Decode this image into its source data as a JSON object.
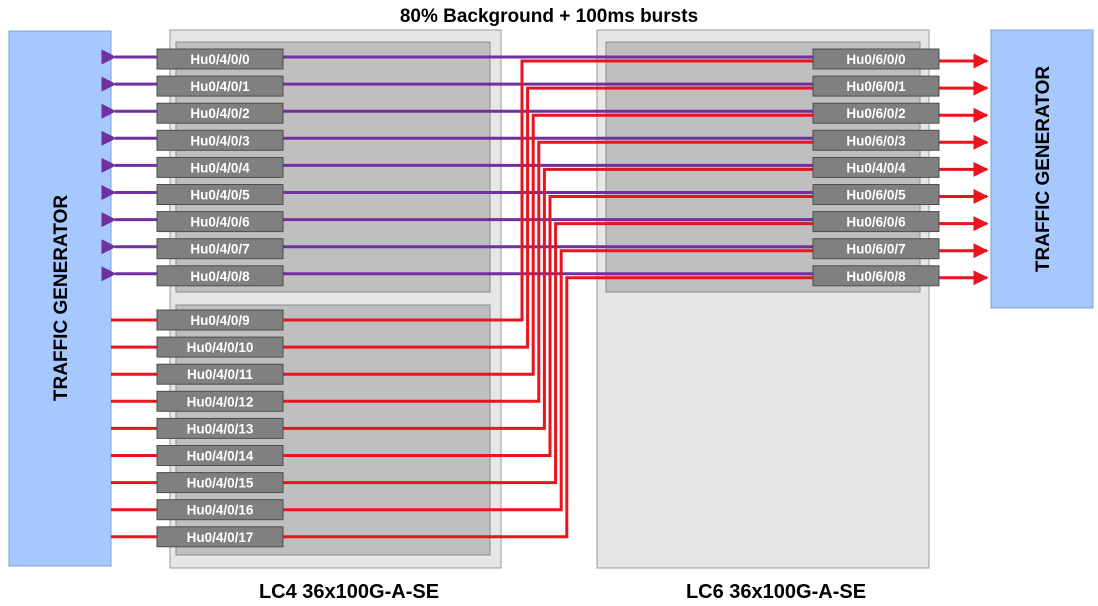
{
  "title": "80% Background + 100ms bursts",
  "left_generator": {
    "label": "TRAFFIC GENERATOR"
  },
  "right_generator": {
    "label": "TRAFFIC GENERATOR"
  },
  "lc4": {
    "label": "LC4 36x100G-A-SE"
  },
  "lc6": {
    "label": "LC6 36x100G-A-SE"
  },
  "colors": {
    "purple_link": "#7030a0",
    "red_link": "#e8141e",
    "generator_fill": "#a6c8ff",
    "port_fill": "#808080",
    "card_fill": "#e6e6e6",
    "asic_fill": "#bfbfbf"
  },
  "lc4_ports": [
    "Hu0/4/0/0",
    "Hu0/4/0/1",
    "Hu0/4/0/2",
    "Hu0/4/0/3",
    "Hu0/4/0/4",
    "Hu0/4/0/5",
    "Hu0/4/0/6",
    "Hu0/4/0/7",
    "Hu0/4/0/8",
    "Hu0/4/0/9",
    "Hu0/4/0/10",
    "Hu0/4/0/11",
    "Hu0/4/0/12",
    "Hu0/4/0/13",
    "Hu0/4/0/14",
    "Hu0/4/0/15",
    "Hu0/4/0/16",
    "Hu0/4/0/17"
  ],
  "lc6_ports": [
    "Hu0/6/0/0",
    "Hu0/6/0/1",
    "Hu0/6/0/2",
    "Hu0/6/0/3",
    "Hu0/4/0/4",
    "Hu0/6/0/5",
    "Hu0/6/0/6",
    "Hu0/6/0/7",
    "Hu0/6/0/8"
  ]
}
